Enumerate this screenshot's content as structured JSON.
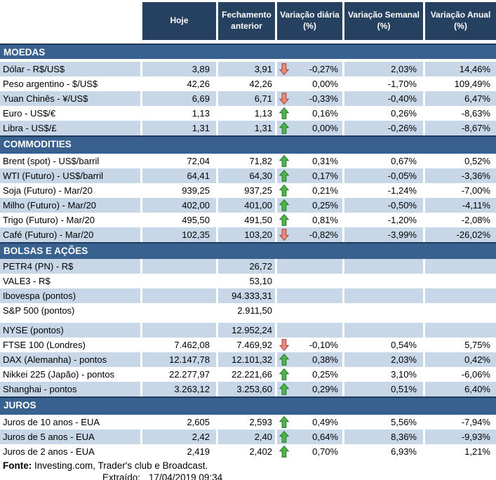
{
  "colors": {
    "header_bg": "#25415F",
    "section_bg": "#396190",
    "section_border": "#1F3A5E",
    "stripe": "#C7D7E8",
    "arrow_up_fill": "#4CB648",
    "arrow_up_stroke": "#2E7D32",
    "arrow_down_fill": "#E98C7E",
    "arrow_down_stroke": "#B04A3C"
  },
  "header": {
    "columns": [
      "Hoje",
      "Fechamento anterior",
      "Variação diária (%)",
      "Variação Semanal (%)",
      "Variação Anual (%)"
    ]
  },
  "icons": {
    "up": "up-arrow-icon",
    "down": "down-arrow-icon"
  },
  "sections": [
    {
      "title": "MOEDAS",
      "rows": [
        {
          "label": "Dólar - R$/US$",
          "hoje": "3,89",
          "fechamento_anterior": "3,91",
          "arrow": "down",
          "variacao_diaria": "-0,27%",
          "variacao_semanal": "2,03%",
          "variacao_anual": "14,46%",
          "shaded": true,
          "gap_below": false
        },
        {
          "label": "Peso argentino - $/US$",
          "hoje": "42,26",
          "fechamento_anterior": "42,26",
          "arrow": "",
          "variacao_diaria": "0,00%",
          "variacao_semanal": "-1,70%",
          "variacao_anual": "109,49%",
          "shaded": false,
          "gap_below": false
        },
        {
          "label": "Yuan Chinês - ¥/US$",
          "hoje": "6,69",
          "fechamento_anterior": "6,71",
          "arrow": "down",
          "variacao_diaria": "-0,33%",
          "variacao_semanal": "-0,40%",
          "variacao_anual": "6,47%",
          "shaded": true,
          "gap_below": false
        },
        {
          "label": "Euro - US$/€",
          "hoje": "1,13",
          "fechamento_anterior": "1,13",
          "arrow": "up",
          "variacao_diaria": "0,16%",
          "variacao_semanal": "0,26%",
          "variacao_anual": "-8,63%",
          "shaded": false,
          "gap_below": false
        },
        {
          "label": "Libra - US$/£",
          "hoje": "1,31",
          "fechamento_anterior": "1,31",
          "arrow": "up",
          "variacao_diaria": "0,00%",
          "variacao_semanal": "-0,26%",
          "variacao_anual": "-8,67%",
          "shaded": true,
          "gap_below": false
        }
      ]
    },
    {
      "title": "COMMODITIES",
      "rows": [
        {
          "label": "Brent (spot) - US$/barril",
          "hoje": "72,04",
          "fechamento_anterior": "71,82",
          "arrow": "up",
          "variacao_diaria": "0,31%",
          "variacao_semanal": "0,67%",
          "variacao_anual": "0,52%",
          "shaded": false,
          "gap_below": false
        },
        {
          "label": "WTI (Futuro) - US$/barril",
          "hoje": "64,41",
          "fechamento_anterior": "64,30",
          "arrow": "up",
          "variacao_diaria": "0,17%",
          "variacao_semanal": "-0,05%",
          "variacao_anual": "-3,36%",
          "shaded": true,
          "gap_below": false
        },
        {
          "label": "Soja (Futuro) - Mar/20",
          "hoje": "939,25",
          "fechamento_anterior": "937,25",
          "arrow": "up",
          "variacao_diaria": "0,21%",
          "variacao_semanal": "-1,24%",
          "variacao_anual": "-7,00%",
          "shaded": false,
          "gap_below": false
        },
        {
          "label": "Milho (Futuro) - Mar/20",
          "hoje": "402,00",
          "fechamento_anterior": "401,00",
          "arrow": "up",
          "variacao_diaria": "0,25%",
          "variacao_semanal": "-0,50%",
          "variacao_anual": "-4,11%",
          "shaded": true,
          "gap_below": false
        },
        {
          "label": "Trigo (Futuro) - Mar/20",
          "hoje": "495,50",
          "fechamento_anterior": "491,50",
          "arrow": "up",
          "variacao_diaria": "0,81%",
          "variacao_semanal": "-1,20%",
          "variacao_anual": "-2,08%",
          "shaded": false,
          "gap_below": false
        },
        {
          "label": "Café (Futuro) - Mar/20",
          "hoje": "102,35",
          "fechamento_anterior": "103,20",
          "arrow": "down",
          "variacao_diaria": "-0,82%",
          "variacao_semanal": "-3,99%",
          "variacao_anual": "-26,02%",
          "shaded": true,
          "gap_below": false
        }
      ]
    },
    {
      "title": "BOLSAS E AÇÕES",
      "rows": [
        {
          "label": "PETR4 (PN) - R$",
          "hoje": "",
          "fechamento_anterior": "26,72",
          "arrow": "",
          "variacao_diaria": "",
          "variacao_semanal": "",
          "variacao_anual": "",
          "shaded": true,
          "gap_below": false
        },
        {
          "label": "VALE3 - R$",
          "hoje": "",
          "fechamento_anterior": "53,10",
          "arrow": "",
          "variacao_diaria": "",
          "variacao_semanal": "",
          "variacao_anual": "",
          "shaded": false,
          "gap_below": false
        },
        {
          "label": "Ibovespa (pontos)",
          "hoje": "",
          "fechamento_anterior": "94.333,31",
          "arrow": "",
          "variacao_diaria": "",
          "variacao_semanal": "",
          "variacao_anual": "",
          "shaded": true,
          "gap_below": false
        },
        {
          "label": "S&P 500 (pontos)",
          "hoje": "",
          "fechamento_anterior": "2.911,50",
          "arrow": "",
          "variacao_diaria": "",
          "variacao_semanal": "",
          "variacao_anual": "",
          "shaded": false,
          "gap_below": true
        },
        {
          "label": "NYSE (pontos)",
          "hoje": "",
          "fechamento_anterior": "12.952,24",
          "arrow": "",
          "variacao_diaria": "",
          "variacao_semanal": "",
          "variacao_anual": "",
          "shaded": true,
          "gap_below": false
        },
        {
          "label": "FTSE 100 (Londres)",
          "hoje": "7.462,08",
          "fechamento_anterior": "7.469,92",
          "arrow": "down",
          "variacao_diaria": "-0,10%",
          "variacao_semanal": "0,54%",
          "variacao_anual": "5,75%",
          "shaded": false,
          "gap_below": false
        },
        {
          "label": "DAX (Alemanha) - pontos",
          "hoje": "12.147,78",
          "fechamento_anterior": "12.101,32",
          "arrow": "up",
          "variacao_diaria": "0,38%",
          "variacao_semanal": "2,03%",
          "variacao_anual": "0,42%",
          "shaded": true,
          "gap_below": false
        },
        {
          "label": "Nikkei 225 (Japão) - pontos",
          "hoje": "22.277,97",
          "fechamento_anterior": "22.221,66",
          "arrow": "up",
          "variacao_diaria": "0,25%",
          "variacao_semanal": "3,10%",
          "variacao_anual": "-6,06%",
          "shaded": false,
          "gap_below": false
        },
        {
          "label": "Shanghai - pontos",
          "hoje": "3.263,12",
          "fechamento_anterior": "3.253,60",
          "arrow": "up",
          "variacao_diaria": "0,29%",
          "variacao_semanal": "0,51%",
          "variacao_anual": "6,40%",
          "shaded": true,
          "gap_below": false
        }
      ]
    },
    {
      "title": "JUROS",
      "rows": [
        {
          "label": "Juros de 10 anos - EUA",
          "hoje": "2,605",
          "fechamento_anterior": "2,593",
          "arrow": "up",
          "variacao_diaria": "0,49%",
          "variacao_semanal": "5,56%",
          "variacao_anual": "-7,94%",
          "shaded": false,
          "gap_below": false
        },
        {
          "label": "Juros de 5 anos - EUA",
          "hoje": "2,42",
          "fechamento_anterior": "2,40",
          "arrow": "up",
          "variacao_diaria": "0,64%",
          "variacao_semanal": "8,36%",
          "variacao_anual": "-9,93%",
          "shaded": true,
          "gap_below": false
        },
        {
          "label": "Juros de 2 anos - EUA",
          "hoje": "2,419",
          "fechamento_anterior": "2,402",
          "arrow": "up",
          "variacao_diaria": "0,70%",
          "variacao_semanal": "6,93%",
          "variacao_anual": "1,21%",
          "shaded": false,
          "gap_below": false
        }
      ]
    }
  ],
  "footer": {
    "fonte_label": "Fonte:",
    "fonte_text": " Investing.com, Trader's club e Broadcast.",
    "extraido_label": "Extraído:",
    "extraido_value": "17/04/2019 09:34"
  }
}
